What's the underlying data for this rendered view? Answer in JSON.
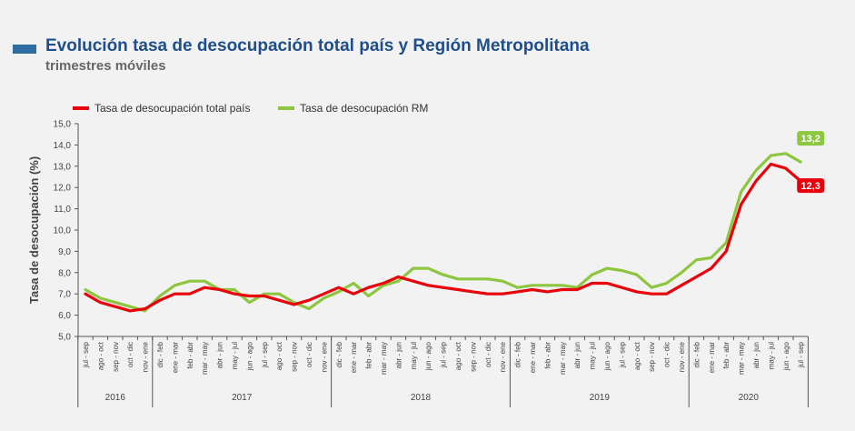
{
  "header": {
    "title": "Evolución tasa de desocupación total país y Región Metropolitana",
    "subtitle": "trimestres móviles"
  },
  "colors": {
    "total": "#e8000b",
    "rm": "#8dc63f",
    "title_bar": "#2e6da4"
  },
  "chart_data": {
    "type": "line",
    "title": "Evolución tasa de desocupación total país y Región Metropolitana",
    "subtitle": "trimestres móviles",
    "ylabel": "Tasa de desocupación (%)",
    "xlabel": "",
    "ylim": [
      5.0,
      15.0
    ],
    "yticks": [
      "5,0",
      "6,0",
      "7,0",
      "8,0",
      "9,0",
      "10,0",
      "11,0",
      "12,0",
      "13,0",
      "14,0",
      "15,0"
    ],
    "grid": false,
    "legend_position": "top-left",
    "categories": [
      "jul - sep",
      "ago - oct",
      "sep - nov",
      "oct - dic",
      "nov - ene",
      "dic - feb",
      "ene - mar",
      "feb - abr",
      "mar - may",
      "abr - jun",
      "may - jul",
      "jun - ago",
      "jul - sep",
      "ago - oct",
      "sep - nov",
      "oct - dic",
      "nov - ene",
      "dic - feb",
      "ene - mar",
      "feb - abr",
      "mar - may",
      "abr - jun",
      "may - jul",
      "jun - ago",
      "jul - sep",
      "ago - oct",
      "sep - nov",
      "oct - dic",
      "nov - ene",
      "dic - feb",
      "ene - mar",
      "feb - abr",
      "mar - may",
      "abr - jun",
      "may - jul",
      "jun - ago",
      "jul - sep",
      "ago - oct",
      "sep - nov",
      "oct - dic",
      "nov - ene",
      "dic - feb",
      "ene - mar",
      "feb - abr",
      "mar - may",
      "abr - jun",
      "may - jul",
      "jun - ago",
      "jul - sep"
    ],
    "years": [
      {
        "label": "2016",
        "start": 0,
        "end": 4
      },
      {
        "label": "2017",
        "start": 5,
        "end": 16
      },
      {
        "label": "2018",
        "start": 17,
        "end": 28
      },
      {
        "label": "2019",
        "start": 29,
        "end": 40
      },
      {
        "label": "2020",
        "start": 41,
        "end": 48
      }
    ],
    "series": [
      {
        "name": "Tasa de desocupación total país",
        "color": "#e8000b",
        "end_label": "12,3",
        "values": [
          7.0,
          6.6,
          6.4,
          6.2,
          6.3,
          6.7,
          7.0,
          7.0,
          7.3,
          7.2,
          7.0,
          6.9,
          6.9,
          6.7,
          6.5,
          6.7,
          7.0,
          7.3,
          7.0,
          7.3,
          7.5,
          7.8,
          7.6,
          7.4,
          7.3,
          7.2,
          7.1,
          7.0,
          7.0,
          7.1,
          7.2,
          7.1,
          7.2,
          7.2,
          7.5,
          7.5,
          7.3,
          7.1,
          7.0,
          7.0,
          7.4,
          7.8,
          8.2,
          9.0,
          11.2,
          12.3,
          13.1,
          12.9,
          12.3
        ]
      },
      {
        "name": "Tasa de desocupación RM",
        "color": "#8dc63f",
        "end_label": "13,2",
        "values": [
          7.2,
          6.8,
          6.6,
          6.4,
          6.2,
          6.9,
          7.4,
          7.6,
          7.6,
          7.2,
          7.2,
          6.6,
          7.0,
          7.0,
          6.6,
          6.3,
          6.8,
          7.1,
          7.5,
          6.9,
          7.4,
          7.6,
          8.2,
          8.2,
          7.9,
          7.7,
          7.7,
          7.7,
          7.6,
          7.3,
          7.4,
          7.4,
          7.4,
          7.3,
          7.9,
          8.2,
          8.1,
          7.9,
          7.3,
          7.5,
          8.0,
          8.6,
          8.7,
          9.4,
          11.8,
          12.8,
          13.5,
          13.6,
          13.2
        ]
      }
    ]
  }
}
